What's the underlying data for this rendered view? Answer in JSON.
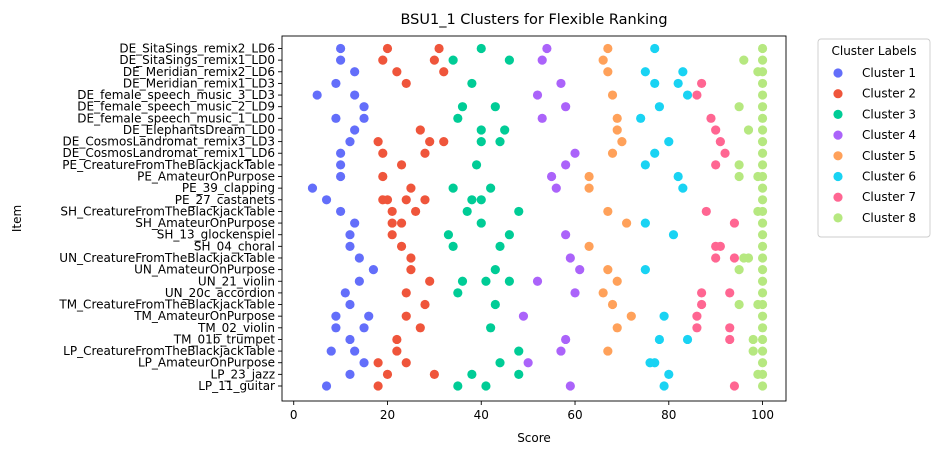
{
  "chart_data": {
    "type": "scatter",
    "title": "BSU1_1 Clusters for Flexible Ranking",
    "xlabel": "Score",
    "ylabel": "Item",
    "xlim": [
      -2.5,
      105
    ],
    "xticks": [
      0,
      20,
      40,
      60,
      80,
      100
    ],
    "grid": false,
    "legend": {
      "title": "Cluster Labels",
      "placement": "outside-top-right"
    },
    "items": [
      "DE_SitaSings_remix2_LD6",
      "DE_SitaSings_remix1_LD0",
      "DE_Meridian_remix2_LD6",
      "DE_Meridian_remix1_LD3",
      "DE_female_speech_music_3_LD3",
      "DE_female_speech_music_2_LD9",
      "DE_female_speech_music_1_LD0",
      "DE_ElephantsDream_LD0",
      "DE_CosmosLandromat_remix3_LD3",
      "DE_CosmosLandromat_remix1_LD6",
      "PE_CreatureFromTheBlackjackTable",
      "PE_AmateurOnPurpose",
      "PE_39_clapping",
      "PE_27_castanets",
      "SH_CreatureFromTheBlackjackTable",
      "SH_AmateurOnPurpose",
      "SH_13_glockenspiel",
      "SH_04_choral",
      "UN_CreatureFromTheBlackjackTable",
      "UN_AmateurOnPurpose",
      "UN_21_violin",
      "UN_20c_accordion",
      "TM_CreatureFromTheBlackjackTable",
      "TM_AmateurOnPurpose",
      "TM_02_violin",
      "TM_01b_trumpet",
      "LP_CreatureFromTheBlackjackTable",
      "LP_AmateurOnPurpose",
      "LP_23_jazz",
      "LP_11_guitar"
    ],
    "series": [
      {
        "name": "Cluster 1",
        "color": "#636efa",
        "points": [
          [
            10,
            0
          ],
          [
            10,
            1
          ],
          [
            13,
            2
          ],
          [
            9,
            3
          ],
          [
            5,
            4
          ],
          [
            13,
            4
          ],
          [
            15,
            5
          ],
          [
            9,
            6
          ],
          [
            15,
            6
          ],
          [
            13,
            7
          ],
          [
            12,
            8
          ],
          [
            10,
            9
          ],
          [
            10,
            10
          ],
          [
            10,
            11
          ],
          [
            4,
            12
          ],
          [
            7,
            13
          ],
          [
            10,
            14
          ],
          [
            13,
            15
          ],
          [
            12,
            16
          ],
          [
            12,
            17
          ],
          [
            14,
            18
          ],
          [
            17,
            19
          ],
          [
            14,
            20
          ],
          [
            11,
            21
          ],
          [
            12,
            22
          ],
          [
            9,
            23
          ],
          [
            16,
            23
          ],
          [
            9,
            24
          ],
          [
            15,
            24
          ],
          [
            12,
            25
          ],
          [
            8,
            26
          ],
          [
            13,
            26
          ],
          [
            15,
            27
          ],
          [
            12,
            28
          ],
          [
            7,
            29
          ]
        ]
      },
      {
        "name": "Cluster 2",
        "color": "#ef553b",
        "points": [
          [
            20,
            0
          ],
          [
            31,
            0
          ],
          [
            19,
            1
          ],
          [
            30,
            1
          ],
          [
            22,
            2
          ],
          [
            32,
            2
          ],
          [
            24,
            3
          ],
          [
            27,
            7
          ],
          [
            18,
            8
          ],
          [
            29,
            8
          ],
          [
            32,
            8
          ],
          [
            19,
            9
          ],
          [
            28,
            9
          ],
          [
            23,
            10
          ],
          [
            19,
            11
          ],
          [
            25,
            12
          ],
          [
            19,
            13
          ],
          [
            20,
            13
          ],
          [
            24,
            13
          ],
          [
            28,
            13
          ],
          [
            21,
            14
          ],
          [
            26,
            14
          ],
          [
            21,
            15
          ],
          [
            23,
            15
          ],
          [
            21,
            16
          ],
          [
            23,
            17
          ],
          [
            25,
            18
          ],
          [
            25,
            19
          ],
          [
            29,
            20
          ],
          [
            24,
            21
          ],
          [
            28,
            22
          ],
          [
            24,
            23
          ],
          [
            27,
            24
          ],
          [
            22,
            25
          ],
          [
            22,
            26
          ],
          [
            18,
            27
          ],
          [
            24,
            27
          ],
          [
            30,
            28
          ],
          [
            20,
            28
          ],
          [
            18,
            29
          ]
        ]
      },
      {
        "name": "Cluster 3",
        "color": "#00cc96",
        "points": [
          [
            40,
            0
          ],
          [
            34,
            1
          ],
          [
            46,
            1
          ],
          [
            38,
            3
          ],
          [
            36,
            5
          ],
          [
            43,
            5
          ],
          [
            35,
            6
          ],
          [
            40,
            7
          ],
          [
            45,
            7
          ],
          [
            40,
            8
          ],
          [
            44,
            8
          ],
          [
            39,
            10
          ],
          [
            34,
            12
          ],
          [
            42,
            12
          ],
          [
            38,
            13
          ],
          [
            40,
            13
          ],
          [
            37,
            14
          ],
          [
            48,
            14
          ],
          [
            40,
            15
          ],
          [
            33,
            16
          ],
          [
            46,
            16
          ],
          [
            34,
            17
          ],
          [
            44,
            17
          ],
          [
            43,
            19
          ],
          [
            36,
            20
          ],
          [
            41,
            20
          ],
          [
            46,
            20
          ],
          [
            35,
            21
          ],
          [
            43,
            22
          ],
          [
            42,
            24
          ],
          [
            48,
            26
          ],
          [
            44,
            27
          ],
          [
            38,
            28
          ],
          [
            48,
            28
          ],
          [
            35,
            29
          ],
          [
            41,
            29
          ]
        ]
      },
      {
        "name": "Cluster 4",
        "color": "#ab63fa",
        "points": [
          [
            54,
            0
          ],
          [
            53,
            1
          ],
          [
            57,
            3
          ],
          [
            52,
            4
          ],
          [
            58,
            5
          ],
          [
            53,
            6
          ],
          [
            60,
            9
          ],
          [
            58,
            10
          ],
          [
            55,
            11
          ],
          [
            56,
            12
          ],
          [
            58,
            16
          ],
          [
            59,
            18
          ],
          [
            61,
            19
          ],
          [
            52,
            20
          ],
          [
            60,
            21
          ],
          [
            49,
            23
          ],
          [
            58,
            25
          ],
          [
            57,
            26
          ],
          [
            50,
            27
          ],
          [
            59,
            29
          ]
        ]
      },
      {
        "name": "Cluster 5",
        "color": "#ffa15a",
        "points": [
          [
            67,
            0
          ],
          [
            66,
            1
          ],
          [
            67,
            2
          ],
          [
            68,
            4
          ],
          [
            69,
            6
          ],
          [
            69,
            7
          ],
          [
            70,
            8
          ],
          [
            68,
            9
          ],
          [
            63,
            11
          ],
          [
            63,
            12
          ],
          [
            67,
            14
          ],
          [
            71,
            15
          ],
          [
            63,
            17
          ],
          [
            67,
            19
          ],
          [
            69,
            20
          ],
          [
            66,
            21
          ],
          [
            68,
            22
          ],
          [
            72,
            23
          ],
          [
            69,
            24
          ],
          [
            67,
            26
          ]
        ]
      },
      {
        "name": "Cluster 6",
        "color": "#19d3f3",
        "points": [
          [
            77,
            0
          ],
          [
            75,
            2
          ],
          [
            83,
            2
          ],
          [
            77,
            3
          ],
          [
            82,
            3
          ],
          [
            84,
            4
          ],
          [
            78,
            5
          ],
          [
            74,
            6
          ],
          [
            80,
            8
          ],
          [
            77,
            9
          ],
          [
            75,
            10
          ],
          [
            82,
            11
          ],
          [
            83,
            12
          ],
          [
            75,
            15
          ],
          [
            81,
            16
          ],
          [
            75,
            19
          ],
          [
            79,
            23
          ],
          [
            78,
            25
          ],
          [
            84,
            25
          ],
          [
            76,
            27
          ],
          [
            77,
            27
          ],
          [
            80,
            28
          ],
          [
            79,
            29
          ]
        ]
      },
      {
        "name": "Cluster 7",
        "color": "#ff6692",
        "points": [
          [
            87,
            3
          ],
          [
            86,
            4
          ],
          [
            89,
            6
          ],
          [
            90,
            7
          ],
          [
            91,
            8
          ],
          [
            92,
            9
          ],
          [
            90,
            10
          ],
          [
            88,
            14
          ],
          [
            94,
            15
          ],
          [
            90,
            17
          ],
          [
            91,
            17
          ],
          [
            90,
            18
          ],
          [
            94,
            18
          ],
          [
            87,
            21
          ],
          [
            93,
            21
          ],
          [
            87,
            22
          ],
          [
            86,
            23
          ],
          [
            86,
            24
          ],
          [
            93,
            24
          ],
          [
            93,
            25
          ],
          [
            94,
            29
          ]
        ]
      },
      {
        "name": "Cluster 8",
        "color": "#b6e880",
        "points": [
          [
            100,
            0
          ],
          [
            96,
            1
          ],
          [
            100,
            1
          ],
          [
            99,
            2
          ],
          [
            100,
            2
          ],
          [
            100,
            3
          ],
          [
            100,
            4
          ],
          [
            95,
            5
          ],
          [
            100,
            5
          ],
          [
            100,
            6
          ],
          [
            97,
            7
          ],
          [
            100,
            7
          ],
          [
            100,
            8
          ],
          [
            100,
            9
          ],
          [
            95,
            10
          ],
          [
            100,
            10
          ],
          [
            95,
            11
          ],
          [
            99,
            11
          ],
          [
            100,
            11
          ],
          [
            100,
            12
          ],
          [
            100,
            13
          ],
          [
            99,
            14
          ],
          [
            100,
            14
          ],
          [
            100,
            15
          ],
          [
            100,
            16
          ],
          [
            100,
            17
          ],
          [
            96,
            18
          ],
          [
            97,
            18
          ],
          [
            100,
            18
          ],
          [
            95,
            19
          ],
          [
            100,
            19
          ],
          [
            100,
            20
          ],
          [
            100,
            21
          ],
          [
            95,
            22
          ],
          [
            99,
            22
          ],
          [
            100,
            22
          ],
          [
            100,
            23
          ],
          [
            100,
            24
          ],
          [
            98,
            25
          ],
          [
            100,
            25
          ],
          [
            98,
            26
          ],
          [
            100,
            26
          ],
          [
            100,
            27
          ],
          [
            99,
            28
          ],
          [
            100,
            28
          ],
          [
            100,
            29
          ]
        ]
      }
    ]
  }
}
